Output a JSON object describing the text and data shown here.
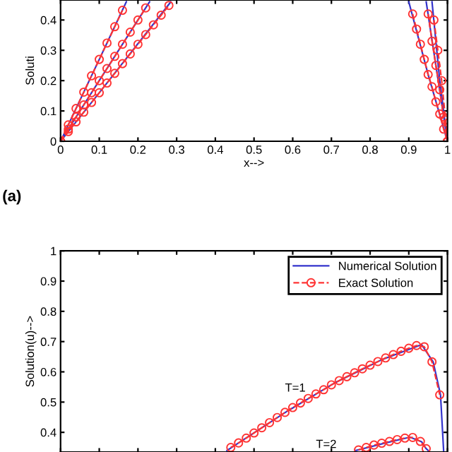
{
  "chart_data": [
    {
      "type": "line",
      "xlabel": "x-->",
      "ylabel": "Soluti",
      "annotations": [
        "(a)"
      ],
      "xlim": [
        0,
        1
      ],
      "ylim": [
        0,
        0.466
      ],
      "xticks": [
        0,
        0.1,
        0.2,
        0.3,
        0.4,
        0.5,
        0.6,
        0.7,
        0.8,
        0.9,
        1
      ],
      "yticks": [
        0,
        0.1,
        0.2,
        0.3,
        0.4
      ],
      "grid": false,
      "legend": false,
      "series": [
        {
          "color": "#3333cc",
          "line_style": "solid",
          "marker": "none",
          "x": [
            0,
            0.1,
            0.17
          ],
          "values": [
            0,
            0.27,
            0.46
          ]
        },
        {
          "color": "#3333cc",
          "line_style": "solid",
          "marker": "none",
          "x": [
            0,
            0.1,
            0.23
          ],
          "values": [
            0,
            0.2,
            0.46
          ]
        },
        {
          "color": "#3333cc",
          "line_style": "solid",
          "marker": "none",
          "x": [
            0,
            0.1,
            0.285
          ],
          "values": [
            0,
            0.16,
            0.46
          ]
        },
        {
          "color": "#3333cc",
          "line_style": "solid",
          "marker": "none",
          "x": [
            0.9,
            0.95,
            1
          ],
          "values": [
            0.46,
            0.22,
            0
          ]
        },
        {
          "color": "#3333cc",
          "line_style": "solid",
          "marker": "none",
          "x": [
            0.945,
            0.97,
            1
          ],
          "values": [
            0.46,
            0.25,
            0
          ]
        },
        {
          "color": "#3333cc",
          "line_style": "solid",
          "marker": "none",
          "x": [
            0.96,
            0.98,
            1
          ],
          "values": [
            0.46,
            0.2,
            0
          ]
        },
        {
          "color": "#ff3333",
          "line_style": "dashed",
          "marker": "circle",
          "x": [
            0,
            0.02,
            0.04,
            0.06,
            0.08,
            0.1,
            0.12,
            0.14,
            0.16
          ],
          "values": [
            0,
            0.054,
            0.108,
            0.162,
            0.216,
            0.27,
            0.324,
            0.378,
            0.432
          ]
        },
        {
          "color": "#ff3333",
          "line_style": "dashed",
          "marker": "circle",
          "x": [
            0,
            0.02,
            0.04,
            0.06,
            0.08,
            0.1,
            0.12,
            0.14,
            0.16,
            0.18,
            0.2,
            0.22
          ],
          "values": [
            0,
            0.04,
            0.08,
            0.12,
            0.16,
            0.2,
            0.24,
            0.28,
            0.32,
            0.36,
            0.4,
            0.44
          ]
        },
        {
          "color": "#ff3333",
          "line_style": "dashed",
          "marker": "circle",
          "x": [
            0,
            0.02,
            0.04,
            0.06,
            0.08,
            0.1,
            0.12,
            0.14,
            0.16,
            0.18,
            0.2,
            0.22,
            0.24,
            0.26,
            0.28
          ],
          "values": [
            0,
            0.032,
            0.064,
            0.096,
            0.128,
            0.16,
            0.192,
            0.224,
            0.256,
            0.288,
            0.32,
            0.352,
            0.384,
            0.416,
            0.448
          ]
        },
        {
          "color": "#ff3333",
          "line_style": "dashed",
          "marker": "circle",
          "x": [
            0.91,
            0.92,
            0.93,
            0.94,
            0.95,
            0.96,
            0.97,
            0.98,
            0.99,
            1
          ],
          "values": [
            0.42,
            0.37,
            0.32,
            0.27,
            0.22,
            0.18,
            0.13,
            0.09,
            0.04,
            0
          ]
        },
        {
          "color": "#ff3333",
          "line_style": "dashed",
          "marker": "circle",
          "x": [
            0.95,
            0.96,
            0.97,
            0.98,
            0.99,
            1
          ],
          "values": [
            0.42,
            0.33,
            0.25,
            0.17,
            0.08,
            0
          ]
        },
        {
          "color": "#ff3333",
          "line_style": "dashed",
          "marker": "circle",
          "x": [
            0.965,
            0.975,
            0.985,
            0.995,
            1
          ],
          "values": [
            0.4,
            0.3,
            0.2,
            0.07,
            0
          ]
        }
      ]
    },
    {
      "type": "line",
      "ylabel": "Solution(u)-->",
      "annotations": [
        "T=1",
        "T=2"
      ],
      "xlim": [
        0,
        1
      ],
      "ylim": [
        0.335,
        1
      ],
      "tick_labels": "y",
      "xticks": [
        {
          "value": 0,
          "label": null
        },
        {
          "value": 0.1,
          "label": null
        },
        {
          "value": 0.2,
          "label": null
        },
        {
          "value": 0.3,
          "label": null
        },
        {
          "value": 0.4,
          "label": null
        },
        {
          "value": 0.5,
          "label": null
        },
        {
          "value": 0.6,
          "label": null
        },
        {
          "value": 0.7,
          "label": null
        },
        {
          "value": 0.8,
          "label": null
        },
        {
          "value": 0.9,
          "label": null
        },
        {
          "value": 1,
          "label": null
        }
      ],
      "yticks": [
        0.4,
        0.5,
        0.6,
        0.7,
        0.8,
        0.9,
        1
      ],
      "grid": false,
      "legend": "top right",
      "series": [
        {
          "name": "Numerical Solution",
          "color": "#3333cc",
          "line_style": "solid",
          "marker": "none",
          "x": [
            0.43,
            0.465,
            0.586,
            0.708,
            0.83,
            0.933,
            0.963,
            0.982,
            0.99
          ],
          "values": [
            0.34,
            0.369,
            0.47,
            0.563,
            0.64,
            0.69,
            0.633,
            0.524,
            0.34
          ]
        },
        {
          "color": "#3333cc",
          "line_style": "solid",
          "marker": "none",
          "x": [
            0.763,
            0.84,
            0.903,
            0.933,
            0.945,
            0.95
          ],
          "values": [
            0.34,
            0.365,
            0.384,
            0.369,
            0.346,
            0.34
          ]
        },
        {
          "name": "Exact Solution",
          "color": "#ff3333",
          "line_style": "dashed",
          "marker": "circle",
          "x": [
            0.44,
            0.46,
            0.48,
            0.5,
            0.52,
            0.54,
            0.56,
            0.58,
            0.6,
            0.62,
            0.64,
            0.66,
            0.68,
            0.7,
            0.72,
            0.74,
            0.76,
            0.78,
            0.8,
            0.82,
            0.84,
            0.86,
            0.88,
            0.9,
            0.92,
            0.94,
            0.96,
            0.98
          ],
          "values": [
            0.35,
            0.365,
            0.381,
            0.398,
            0.415,
            0.432,
            0.449,
            0.466,
            0.482,
            0.497,
            0.512,
            0.527,
            0.541,
            0.557,
            0.571,
            0.584,
            0.597,
            0.61,
            0.622,
            0.634,
            0.646,
            0.657,
            0.668,
            0.678,
            0.687,
            0.683,
            0.633,
            0.524
          ]
        },
        {
          "color": "#ff3333",
          "line_style": "dashed",
          "marker": "circle",
          "x": [
            0.77,
            0.79,
            0.81,
            0.83,
            0.85,
            0.87,
            0.89,
            0.91,
            0.93,
            0.945
          ],
          "values": [
            0.342,
            0.35,
            0.358,
            0.364,
            0.37,
            0.376,
            0.381,
            0.383,
            0.37,
            0.346
          ]
        }
      ]
    }
  ]
}
